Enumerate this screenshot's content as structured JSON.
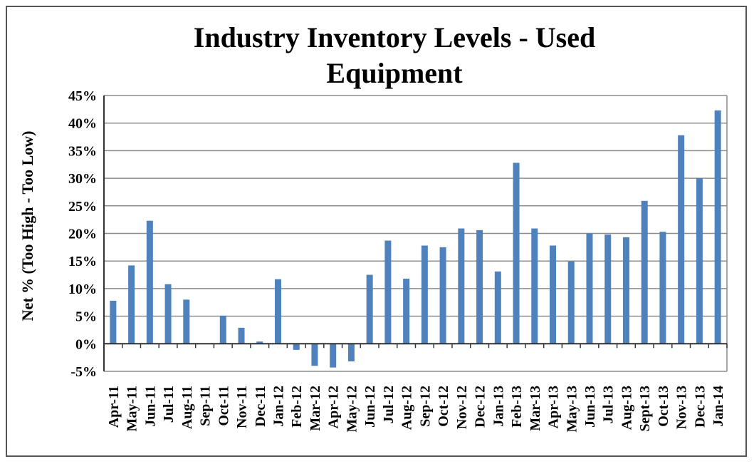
{
  "chart_data": {
    "type": "bar",
    "title_lines": [
      "Industry Inventory Levels - Used",
      "Equipment"
    ],
    "xlabel": "",
    "ylabel": "Net % (Too High - Too Low)",
    "ylim": [
      -5,
      45
    ],
    "yticks": [
      "45%",
      "40%",
      "35%",
      "30%",
      "25%",
      "20%",
      "15%",
      "10%",
      "5%",
      "0%",
      "-5%"
    ],
    "ytick_values": [
      45,
      40,
      35,
      30,
      25,
      20,
      15,
      10,
      5,
      0,
      -5
    ],
    "grid": true,
    "bar_color": "#4F81BD",
    "categories": [
      "Apr-11",
      "May-11",
      "Jun-11",
      "Jul-11",
      "Aug-11",
      "Sep-11",
      "Oct-11",
      "Nov-11",
      "Dec-11",
      "Jan-12",
      "Feb-12",
      "Mar-12",
      "Apr-12",
      "May-12",
      "Jun-12",
      "Jul-12",
      "Aug-12",
      "Sep-12",
      "Oct-12",
      "Nov-12",
      "Dec-12",
      "Jan-13",
      "Feb-13",
      "Mar-13",
      "Apr-13",
      "May-13",
      "Jun-13",
      "Jul-13",
      "Aug-13",
      "Sept-13",
      "Oct-13",
      "Nov-13",
      "Dec-13",
      "Jan-14"
    ],
    "values": [
      7.8,
      14.2,
      22.3,
      10.8,
      8.0,
      0,
      5.1,
      2.9,
      0.4,
      11.7,
      -1.1,
      -4.0,
      -4.3,
      -3.2,
      12.5,
      18.7,
      11.8,
      17.8,
      17.5,
      20.9,
      20.6,
      13.1,
      32.8,
      20.9,
      17.8,
      14.9,
      20.0,
      19.8,
      19.3,
      25.9,
      20.3,
      37.8,
      30.0,
      42.3
    ]
  }
}
